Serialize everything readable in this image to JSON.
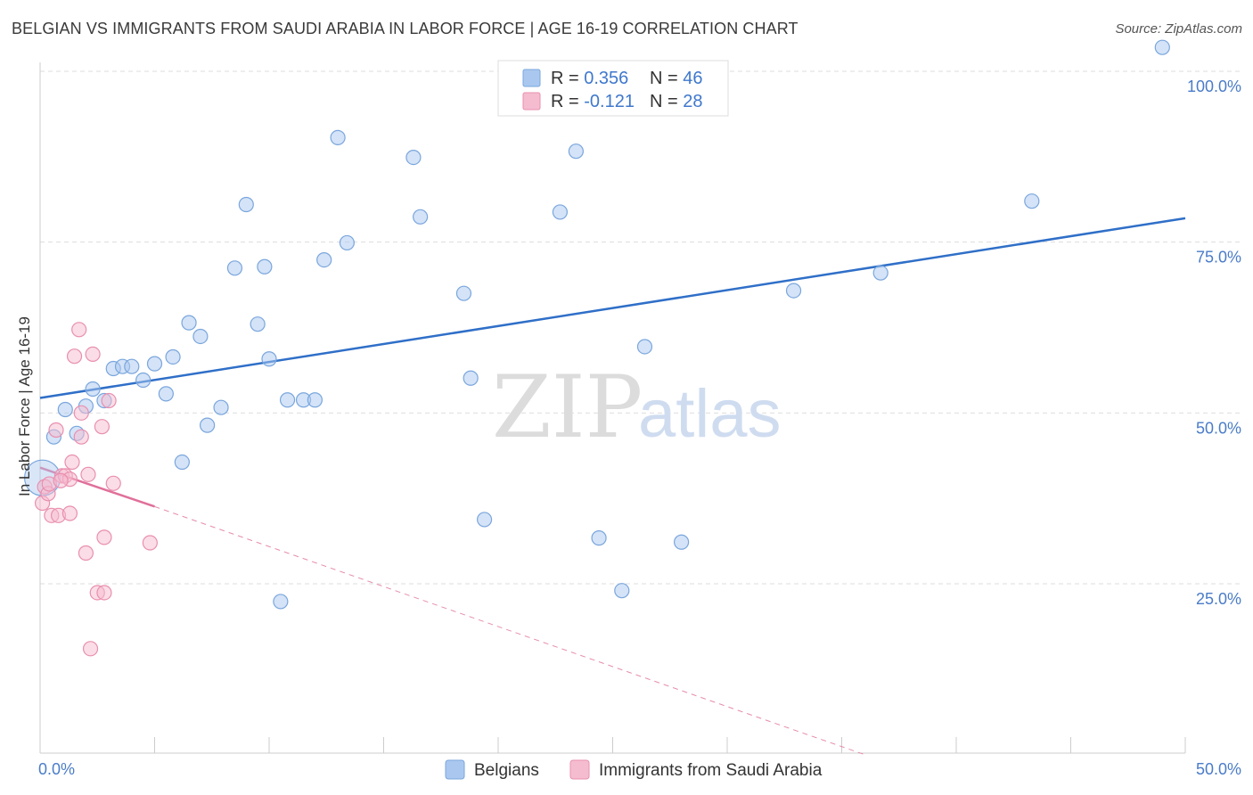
{
  "header": {
    "title": "BELGIAN VS IMMIGRANTS FROM SAUDI ARABIA IN LABOR FORCE | AGE 16-19 CORRELATION CHART",
    "source": "Source: ZipAtlas.com"
  },
  "watermark": {
    "zip": "ZIP",
    "atlas": "atlas"
  },
  "colors": {
    "blue_fill": "#aac8ef",
    "blue_stroke": "#7aa6dd",
    "blue_line": "#2f6fc8",
    "pink_fill": "#f5bcd0",
    "pink_stroke": "#e98fae",
    "pink_line": "#e0709a",
    "tick_text": "#4a7cc8",
    "grid": "#dddddd"
  },
  "legend": {
    "rows": [
      {
        "r_label": "R = ",
        "r_value": "0.356",
        "n_label": "N = ",
        "n_value": "46"
      },
      {
        "r_label": "R = ",
        "r_value": "-0.121",
        "n_label": "N = ",
        "n_value": "28"
      }
    ]
  },
  "chart_data": {
    "type": "scatter",
    "title": "BELGIAN VS IMMIGRANTS FROM SAUDI ARABIA IN LABOR FORCE | AGE 16-19 CORRELATION CHART",
    "xlabel": "",
    "ylabel": "In Labor Force | Age 16-19",
    "xlim": [
      0,
      50
    ],
    "ylim": [
      0,
      102
    ],
    "x_tick_labels": [
      "0.0%",
      "50.0%"
    ],
    "y_ticks": [
      25,
      50,
      75,
      100
    ],
    "y_tick_labels": [
      "25.0%",
      "50.0%",
      "75.0%",
      "100.0%"
    ],
    "grid": true,
    "legend_position": "top-center",
    "series": [
      {
        "name": "Belgians",
        "color": "#aac8ef",
        "r": 0.356,
        "n": 46,
        "trend": {
          "x": [
            0,
            50
          ],
          "y": [
            52.2,
            78.5
          ]
        },
        "points": [
          {
            "x": 0.1,
            "y": 40.5
          },
          {
            "x": 0.6,
            "y": 46.5
          },
          {
            "x": 1.1,
            "y": 50.5
          },
          {
            "x": 1.6,
            "y": 47.0
          },
          {
            "x": 2.0,
            "y": 51.0
          },
          {
            "x": 2.3,
            "y": 53.5
          },
          {
            "x": 2.8,
            "y": 51.8
          },
          {
            "x": 3.2,
            "y": 56.5
          },
          {
            "x": 3.6,
            "y": 56.8
          },
          {
            "x": 4.0,
            "y": 56.8
          },
          {
            "x": 4.5,
            "y": 54.8
          },
          {
            "x": 5.0,
            "y": 57.2
          },
          {
            "x": 5.5,
            "y": 52.8
          },
          {
            "x": 5.8,
            "y": 58.2
          },
          {
            "x": 6.2,
            "y": 42.8
          },
          {
            "x": 6.5,
            "y": 63.2
          },
          {
            "x": 7.0,
            "y": 61.2
          },
          {
            "x": 7.3,
            "y": 48.2
          },
          {
            "x": 7.9,
            "y": 50.8
          },
          {
            "x": 8.5,
            "y": 71.2
          },
          {
            "x": 9.0,
            "y": 80.5
          },
          {
            "x": 9.5,
            "y": 63.0
          },
          {
            "x": 9.8,
            "y": 71.4
          },
          {
            "x": 10.0,
            "y": 57.9
          },
          {
            "x": 10.5,
            "y": 22.4
          },
          {
            "x": 10.8,
            "y": 51.9
          },
          {
            "x": 11.5,
            "y": 51.9
          },
          {
            "x": 12.0,
            "y": 51.9
          },
          {
            "x": 12.4,
            "y": 72.4
          },
          {
            "x": 13.0,
            "y": 90.3
          },
          {
            "x": 13.4,
            "y": 74.9
          },
          {
            "x": 16.3,
            "y": 87.4
          },
          {
            "x": 16.6,
            "y": 78.7
          },
          {
            "x": 18.5,
            "y": 67.5
          },
          {
            "x": 18.8,
            "y": 55.1
          },
          {
            "x": 19.4,
            "y": 34.4
          },
          {
            "x": 22.7,
            "y": 79.4
          },
          {
            "x": 23.4,
            "y": 88.3
          },
          {
            "x": 24.4,
            "y": 31.7
          },
          {
            "x": 25.4,
            "y": 24.0
          },
          {
            "x": 26.4,
            "y": 59.7
          },
          {
            "x": 28.0,
            "y": 31.1
          },
          {
            "x": 32.9,
            "y": 67.9
          },
          {
            "x": 36.7,
            "y": 70.5
          },
          {
            "x": 43.3,
            "y": 81.0
          },
          {
            "x": 49.0,
            "y": 103.5
          }
        ]
      },
      {
        "name": "Immigrants from Saudi Arabia",
        "color": "#f5bcd0",
        "r": -0.121,
        "n": 28,
        "trend_solid": {
          "x": [
            0,
            5.0
          ],
          "y": [
            42.0,
            36.3
          ]
        },
        "trend_dashed": {
          "x": [
            5.0,
            36.0
          ],
          "y": [
            36.3,
            0
          ]
        },
        "points": [
          {
            "x": 0.1,
            "y": 36.8
          },
          {
            "x": 0.2,
            "y": 39.2
          },
          {
            "x": 0.35,
            "y": 38.2
          },
          {
            "x": 0.5,
            "y": 35.0
          },
          {
            "x": 0.7,
            "y": 47.5
          },
          {
            "x": 0.8,
            "y": 35.0
          },
          {
            "x": 0.95,
            "y": 40.8
          },
          {
            "x": 1.1,
            "y": 40.8
          },
          {
            "x": 1.3,
            "y": 35.3
          },
          {
            "x": 1.3,
            "y": 40.3
          },
          {
            "x": 1.4,
            "y": 42.8
          },
          {
            "x": 1.5,
            "y": 58.3
          },
          {
            "x": 1.7,
            "y": 62.2
          },
          {
            "x": 1.8,
            "y": 50.0
          },
          {
            "x": 1.8,
            "y": 46.5
          },
          {
            "x": 2.0,
            "y": 29.5
          },
          {
            "x": 2.1,
            "y": 41.0
          },
          {
            "x": 2.2,
            "y": 15.5
          },
          {
            "x": 2.3,
            "y": 58.6
          },
          {
            "x": 2.5,
            "y": 23.7
          },
          {
            "x": 2.7,
            "y": 48.0
          },
          {
            "x": 2.8,
            "y": 31.8
          },
          {
            "x": 2.8,
            "y": 23.7
          },
          {
            "x": 3.0,
            "y": 51.8
          },
          {
            "x": 3.2,
            "y": 39.7
          },
          {
            "x": 4.8,
            "y": 31.0
          },
          {
            "x": 0.4,
            "y": 39.6
          },
          {
            "x": 0.9,
            "y": 40.1
          }
        ]
      }
    ]
  },
  "bottom_legend": [
    {
      "label": "Belgians"
    },
    {
      "label": "Immigrants from Saudi Arabia"
    }
  ]
}
